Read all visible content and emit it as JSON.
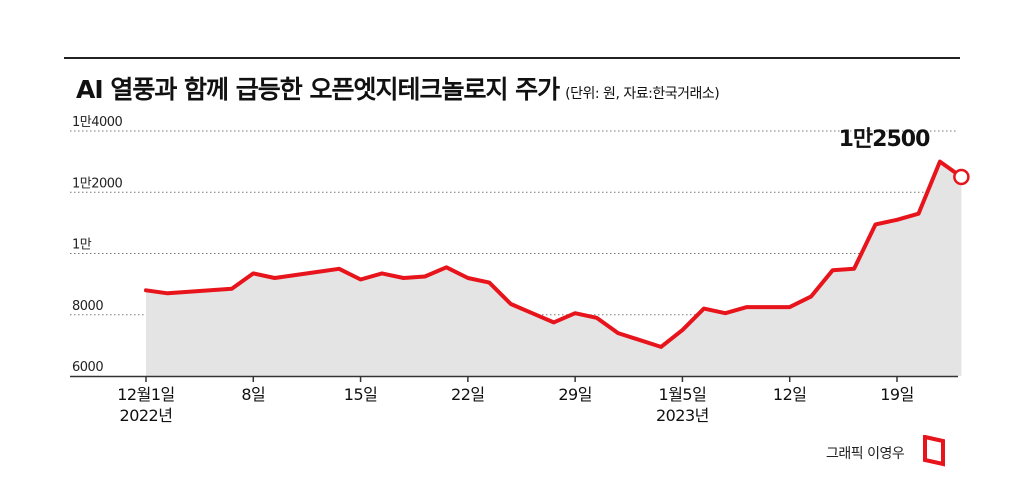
{
  "title": "AI 열풍과 함께 급등한 오픈엣지테크놀로지 주가",
  "subtitle": "(단위: 원, 자료:한국거래소)",
  "credit": "그래픽 이영우",
  "colors": {
    "line": "#e8141b",
    "area": "#e4e4e4",
    "grid": "#777777",
    "axis": "#333333"
  },
  "chart_data": {
    "type": "area",
    "title": "AI 열풍과 함께 급등한 오픈엣지테크놀로지 주가",
    "xlabel": "",
    "ylabel": "",
    "unit": "원",
    "source": "한국거래소",
    "ylim": [
      6000,
      14000
    ],
    "y_ticks": [
      6000,
      8000,
      10000,
      12000,
      14000
    ],
    "y_tick_labels": [
      "6000",
      "8000",
      "1만",
      "1만2000",
      "1만4000"
    ],
    "x_ticks": [
      {
        "label": "12월1일",
        "label2": "2022년",
        "index": 0
      },
      {
        "label": "8일",
        "label2": "",
        "index": 5
      },
      {
        "label": "15일",
        "label2": "",
        "index": 10
      },
      {
        "label": "22일",
        "label2": "",
        "index": 15
      },
      {
        "label": "29일",
        "label2": "",
        "index": 20
      },
      {
        "label": "1월5일",
        "label2": "2023년",
        "index": 25
      },
      {
        "label": "12일",
        "label2": "",
        "index": 30
      },
      {
        "label": "19일",
        "label2": "",
        "index": 35
      }
    ],
    "points": [
      {
        "index": 0,
        "value": 8800
      },
      {
        "index": 1,
        "value": 8700
      },
      {
        "index": 4,
        "value": 8850
      },
      {
        "index": 5,
        "value": 9350
      },
      {
        "index": 6,
        "value": 9200
      },
      {
        "index": 8,
        "value": 9400
      },
      {
        "index": 9,
        "value": 9500
      },
      {
        "index": 10,
        "value": 9150
      },
      {
        "index": 11,
        "value": 9350
      },
      {
        "index": 12,
        "value": 9200
      },
      {
        "index": 13,
        "value": 9250
      },
      {
        "index": 14,
        "value": 9550
      },
      {
        "index": 15,
        "value": 9200
      },
      {
        "index": 16,
        "value": 9050
      },
      {
        "index": 17,
        "value": 8350
      },
      {
        "index": 18,
        "value": 8050
      },
      {
        "index": 19,
        "value": 7750
      },
      {
        "index": 20,
        "value": 8050
      },
      {
        "index": 21,
        "value": 7900
      },
      {
        "index": 22,
        "value": 7400
      },
      {
        "index": 24,
        "value": 6950
      },
      {
        "index": 25,
        "value": 7500
      },
      {
        "index": 26,
        "value": 8200
      },
      {
        "index": 27,
        "value": 8050
      },
      {
        "index": 28,
        "value": 8250
      },
      {
        "index": 30,
        "value": 8250
      },
      {
        "index": 31,
        "value": 8600
      },
      {
        "index": 32,
        "value": 9450
      },
      {
        "index": 33,
        "value": 9500
      },
      {
        "index": 34,
        "value": 10950
      },
      {
        "index": 35,
        "value": 11100
      },
      {
        "index": 36,
        "value": 11300
      },
      {
        "index": 37,
        "value": 13000
      },
      {
        "index": 38,
        "value": 12500
      }
    ],
    "annotation": {
      "text": "1만2500",
      "value": 12500
    }
  }
}
